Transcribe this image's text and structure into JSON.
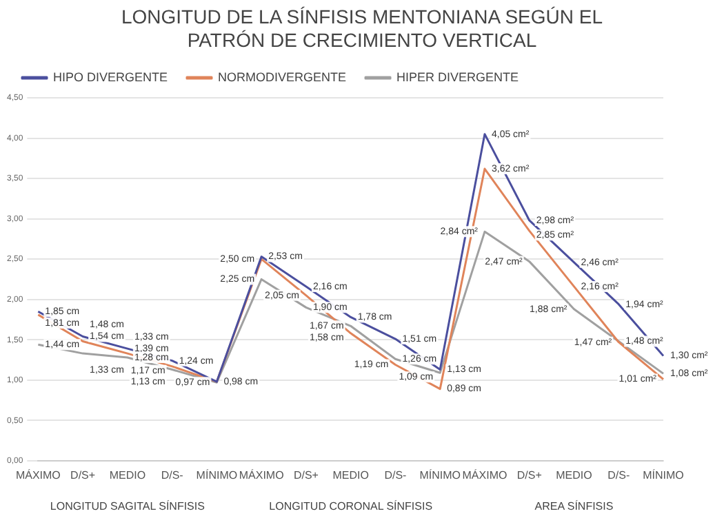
{
  "chart_data": {
    "type": "line",
    "title": "LONGITUD DE LA SÍNFISIS MENTONIANA SEGÚN EL PATRÓN DE CRECIMIENTO VERTICAL",
    "categories": [
      "MÁXIMO",
      "D/S+",
      "MEDIO",
      "D/S-",
      "MÍNIMO",
      "MÁXIMO",
      "D/S+",
      "MEDIO",
      "D/S-",
      "MÍNIMO",
      "MÁXIMO",
      "D/S+",
      "MEDIO",
      "D/S-",
      "MÍNIMO"
    ],
    "series": [
      {
        "name": "HIPO DIVERGENTE",
        "color": "#4b4f9e",
        "values": [
          1.85,
          1.54,
          1.39,
          1.24,
          0.98,
          2.53,
          2.16,
          1.78,
          1.51,
          1.13,
          4.05,
          2.98,
          2.46,
          1.94,
          1.3
        ],
        "value_labels": [
          "1,85 cm",
          "1,54 cm",
          "1,39 cm",
          "1,24 cm",
          "0,98 cm",
          "2,53 cm",
          "2,16 cm",
          "1,78 cm",
          "1,51 cm",
          "1,13 cm",
          "4,05 cm²",
          "2,98 cm²",
          "2,46 cm²",
          "1,94 cm²",
          "1,30 cm²"
        ]
      },
      {
        "name": "NORMODIVERGENTE",
        "color": "#e0845a",
        "values": [
          1.81,
          1.48,
          1.33,
          1.17,
          0.98,
          2.5,
          2.05,
          1.58,
          1.19,
          0.89,
          3.62,
          2.85,
          2.16,
          1.47,
          1.01
        ],
        "value_labels": [
          "1,81 cm",
          "1,48 cm",
          "1,33 cm",
          "1,17 cm",
          null,
          "2,50 cm",
          "2,05 cm",
          "1,58 cm",
          "1,19 cm",
          "0,89 cm",
          "3,62 cm²",
          "2,85 cm²",
          "2,16 cm²",
          "1,47 cm²",
          "1,01 cm²"
        ]
      },
      {
        "name": "HIPER DIVERGENTE",
        "color": "#a0a0a0",
        "values": [
          1.44,
          1.33,
          1.28,
          1.13,
          0.97,
          2.25,
          1.9,
          1.67,
          1.26,
          1.09,
          2.84,
          2.47,
          1.88,
          1.48,
          1.08
        ],
        "value_labels": [
          "1,44 cm",
          "1,33 cm",
          "1,28 cm",
          "1,13 cm",
          "0,97 cm",
          "2,25 cm",
          "1,90 cm",
          "1,67 cm",
          "1,26 cm",
          "1,09 cm",
          "2,84 cm²",
          "2,47 cm²",
          "1,88 cm²",
          "1,48 cm²",
          "1,08 cm²"
        ]
      }
    ],
    "ylim": [
      0,
      4.5
    ],
    "yticks": [
      {
        "value": 0,
        "label": "0,00"
      },
      {
        "value": 0.5,
        "label": "0,50"
      },
      {
        "value": 1,
        "label": "1,00"
      },
      {
        "value": 1.5,
        "label": "1,50"
      },
      {
        "value": 2,
        "label": "2,00"
      },
      {
        "value": 2.5,
        "label": "2,50"
      },
      {
        "value": 3,
        "label": "3,00"
      },
      {
        "value": 3.5,
        "label": "3,50"
      },
      {
        "value": 4,
        "label": "4,00"
      },
      {
        "value": 4.5,
        "label": "4,50"
      }
    ],
    "annotations": [
      "LONGITUD SAGITAL SÍNFISIS",
      "LONGITUD CORONAL SÍNFISIS",
      "AREA SÍNFISIS"
    ],
    "grid": "y",
    "legend": "top",
    "marker": "none",
    "line_style": "solid"
  }
}
